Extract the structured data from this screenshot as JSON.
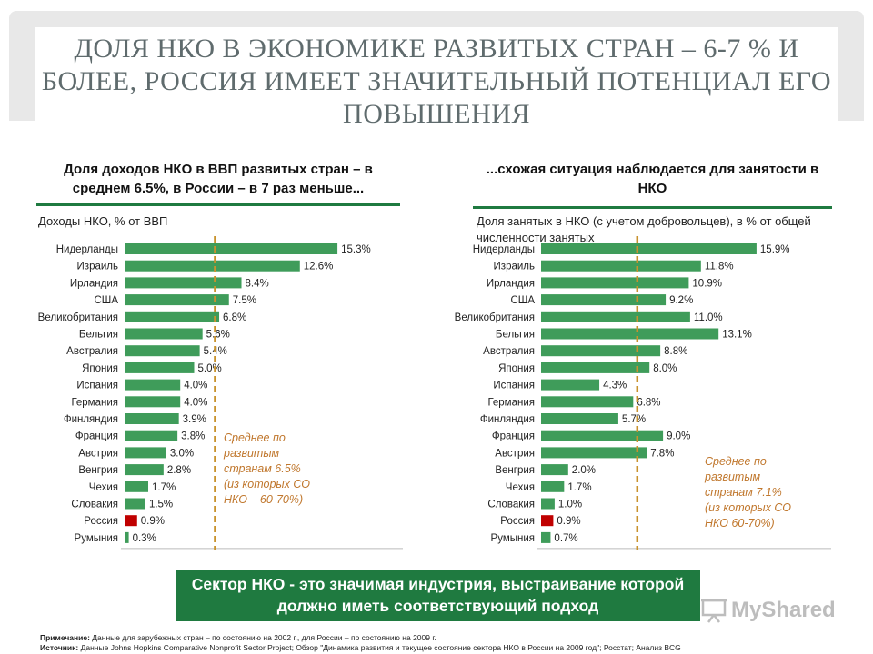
{
  "slide_title": "ДОЛЯ НКО В ЭКОНОМИКЕ РАЗВИТЫХ СТРАН – 6-7 % И БОЛЕЕ, РОССИЯ ИМЕЕТ ЗНАЧИТЕЛЬНЫЙ ПОТЕНЦИАЛ ЕГО ПОВЫШЕНИЯ",
  "callout": "Сектор НКО - это значимая индустрия, выстраивание которой должно иметь соответствующий подход",
  "footnote": {
    "note_label": "Примечание:",
    "note_text": "Данные для зарубежных стран – по состоянию на 2002 г., для России – по состоянию на 2009 г.",
    "source_label": "Источник:",
    "source_text": "Данные Johns Hopkins Comparative Nonprofit Sector Project; Обзор \"Динамика развития и текущее состояние сектора НКО в России на 2009 год\"; Росстат; Анализ BCG"
  },
  "watermark": "MyShared",
  "colors": {
    "bar": "#3f9c5a",
    "russia": "#c00000",
    "average_line": "#c8922d",
    "note": "#c0772d",
    "accent": "#1f7a40"
  },
  "chart_data": [
    {
      "type": "bar",
      "orientation": "horizontal",
      "title": "Доля доходов НКО в ВВП развитых стран – в среднем 6.5%, в России – в 7 раз меньше...",
      "subtitle": "Доходы НКО, % от ВВП",
      "categories": [
        "Нидерланды",
        "Израиль",
        "Ирландия",
        "США",
        "Великобритания",
        "Бельгия",
        "Австралия",
        "Япония",
        "Испания",
        "Германия",
        "Финляндия",
        "Франция",
        "Австрия",
        "Венгрия",
        "Чехия",
        "Словакия",
        "Россия",
        "Румыния"
      ],
      "values": [
        15.3,
        12.6,
        8.4,
        7.5,
        6.8,
        5.6,
        5.4,
        5.0,
        4.0,
        4.0,
        3.9,
        3.8,
        3.0,
        2.8,
        1.7,
        1.5,
        0.9,
        0.3
      ],
      "labels": [
        "15.3%",
        "12.6%",
        "8.4%",
        "7.5%",
        "6.8%",
        "5.6%",
        "5.4%",
        "5.0%",
        "4.0%",
        "4.0%",
        "3.9%",
        "3.8%",
        "3.0%",
        "2.8%",
        "1.7%",
        "1.5%",
        "0.9%",
        "0.3%"
      ],
      "highlight": "Россия",
      "average": 6.5,
      "average_note": [
        "Среднее по",
        "развитым",
        "странам 6.5%",
        "(из которых СО",
        "НКО – 60-70%)"
      ],
      "xlim": [
        0,
        16.5
      ]
    },
    {
      "type": "bar",
      "orientation": "horizontal",
      "title": "...схожая ситуация наблюдается для занятости в НКО",
      "subtitle": "Доля занятых в НКО (с учетом добровольцев), в % от общей численности занятых",
      "categories": [
        "Нидерланды",
        "Израиль",
        "Ирландия",
        "США",
        "Великобритания",
        "Бельгия",
        "Австралия",
        "Япония",
        "Испания",
        "Германия",
        "Финляндия",
        "Франция",
        "Австрия",
        "Венгрия",
        "Чехия",
        "Словакия",
        "Россия",
        "Румыния"
      ],
      "values": [
        15.9,
        11.8,
        10.9,
        9.2,
        11.0,
        13.1,
        8.8,
        8.0,
        4.3,
        6.8,
        5.7,
        9.0,
        7.8,
        2.0,
        1.7,
        1.0,
        0.9,
        0.7
      ],
      "labels": [
        "15.9%",
        "11.8%",
        "10.9%",
        "9.2%",
        "11.0%",
        "13.1%",
        "8.8%",
        "8.0%",
        "4.3%",
        "6.8%",
        "5.7%",
        "9.0%",
        "7.8%",
        "2.0%",
        "1.7%",
        "1.0%",
        "0.9%",
        "0.7%"
      ],
      "highlight": "Россия",
      "average": 7.1,
      "average_note": [
        "Среднее по",
        "развитым",
        "странам 7.1%",
        "(из которых СО",
        "НКО 60-70%)"
      ],
      "xlim": [
        0,
        17.1
      ]
    }
  ]
}
